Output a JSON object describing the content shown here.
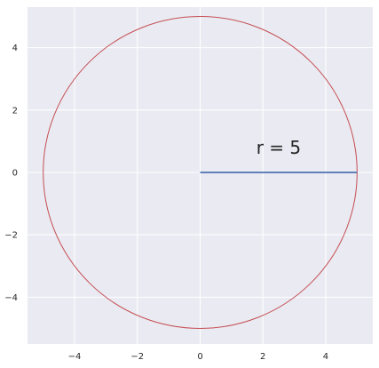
{
  "chart_data": {
    "type": "line",
    "title": "",
    "xlabel": "",
    "ylabel": "",
    "xlim": [
      -5.5,
      5.5
    ],
    "ylim": [
      -5.5,
      5.3
    ],
    "xticks": [
      -4,
      -2,
      0,
      2,
      4
    ],
    "yticks": [
      -4,
      -2,
      0,
      2,
      4
    ],
    "grid": true,
    "background": "#eaeaf2",
    "grid_color": "#ffffff",
    "series": [
      {
        "shape": "circle",
        "center": [
          0,
          0
        ],
        "radius": 5,
        "color": "#c44e52"
      },
      {
        "shape": "segment",
        "x": [
          0,
          5
        ],
        "y": [
          0,
          0
        ],
        "color": "#4c72b0"
      }
    ],
    "annotations": [
      {
        "text": "r = 5",
        "x": 2.5,
        "y": 0.6
      }
    ]
  }
}
